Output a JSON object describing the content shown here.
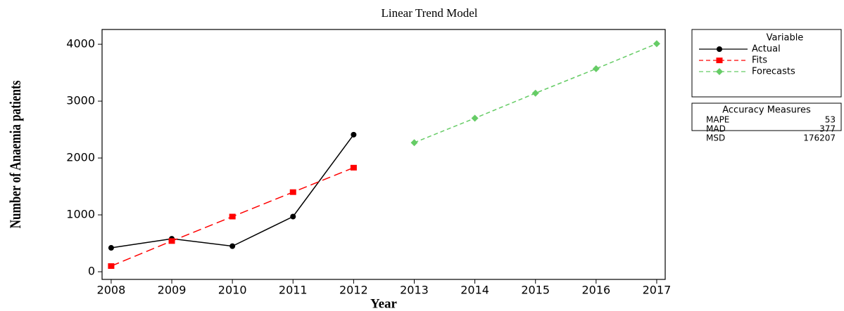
{
  "chart_data": {
    "type": "line",
    "title": "Linear Trend Model",
    "x_label": "Year",
    "y_label": "Number of Anaemia patients",
    "legend_title": "Variable",
    "legend_position": "right",
    "series": [
      {
        "name": "Actual",
        "color": "#000000",
        "dashed": false,
        "marker": "circle",
        "x": [
          2008,
          2009,
          2010,
          2011,
          2012
        ],
        "values": [
          420,
          580,
          450,
          970,
          2410
        ]
      },
      {
        "name": "Fits",
        "color": "#ff0000",
        "dashed": true,
        "marker": "square",
        "x": [
          2008,
          2009,
          2010,
          2011,
          2012
        ],
        "values": [
          100,
          540,
          970,
          1400,
          1830
        ]
      },
      {
        "name": "Forecasts",
        "color": "#66cc66",
        "dashed": true,
        "marker": "diamond",
        "x": [
          2013,
          2014,
          2015,
          2016,
          2017
        ],
        "values": [
          2270,
          2700,
          3140,
          3570,
          4010
        ]
      }
    ],
    "xlim": [
      2007.85,
      2017.14
    ],
    "xticks": [
      2008,
      2009,
      2010,
      2011,
      2012,
      2013,
      2014,
      2015,
      2016,
      2017
    ],
    "ylim": [
      -135,
      4260
    ],
    "yticks": [
      0,
      1000,
      2000,
      3000,
      4000
    ],
    "accuracy_measures": {
      "title": "Accuracy Measures",
      "rows": [
        {
          "name": "MAPE",
          "value": 53
        },
        {
          "name": "MAD",
          "value": 377
        },
        {
          "name": "MSD",
          "value": 176207
        }
      ]
    }
  }
}
